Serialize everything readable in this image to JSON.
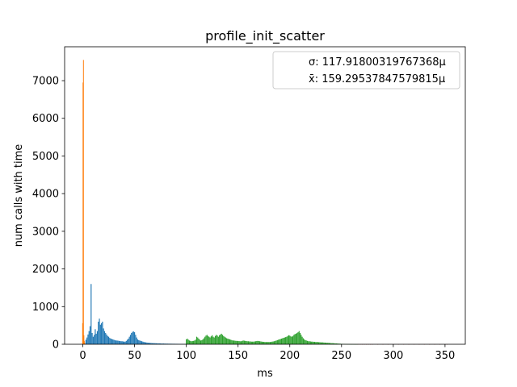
{
  "chart_data": {
    "type": "bar",
    "title": "profile_init_scatter",
    "xlabel": "ms",
    "ylabel": "num calls with time",
    "xlim": [
      -17.6,
      369.6
    ],
    "ylim": [
      0,
      7900
    ],
    "x_ticks": [
      0,
      50,
      100,
      150,
      200,
      250,
      300,
      350
    ],
    "y_ticks": [
      0,
      1000,
      2000,
      3000,
      4000,
      5000,
      6000,
      7000
    ],
    "legend": {
      "placement": "top-right",
      "entries": [
        "σ: 117.91800319767368μ",
        "x̄: 159.29537847579815μ"
      ]
    },
    "series": [
      {
        "color": "#ff7f0e",
        "bar_width": 0.6,
        "x": [
          -0.2,
          0.2,
          0.6,
          1.0,
          1.4,
          1.8
        ],
        "values": [
          560,
          6950,
          7550,
          240,
          90,
          40
        ]
      },
      {
        "color": "#1f77b4",
        "bar_width": 0.9,
        "x": [
          3,
          4,
          5,
          6,
          7,
          8,
          9,
          10,
          11,
          12,
          13,
          14,
          15,
          16,
          17,
          18,
          19,
          20,
          21,
          22,
          23,
          24,
          25,
          26,
          27,
          28,
          29,
          30,
          31,
          32,
          33,
          34,
          35,
          36,
          37,
          38,
          39,
          40,
          41,
          42,
          43,
          44,
          45,
          46,
          47,
          48,
          49,
          50,
          51,
          52,
          53,
          54,
          55,
          56,
          57,
          58,
          59,
          60,
          61,
          62,
          63,
          64,
          65,
          66,
          67,
          68,
          69,
          70,
          71,
          72,
          73,
          74,
          75,
          76,
          77,
          78,
          79,
          80,
          81,
          82,
          83,
          84,
          85,
          86,
          87,
          88,
          89,
          90,
          91,
          92,
          93,
          94,
          95,
          96,
          97,
          98,
          99
        ],
        "values": [
          120,
          180,
          260,
          350,
          480,
          1600,
          300,
          200,
          250,
          400,
          280,
          350,
          600,
          680,
          520,
          560,
          600,
          420,
          350,
          300,
          260,
          220,
          200,
          170,
          150,
          140,
          130,
          120,
          110,
          100,
          100,
          95,
          90,
          85,
          80,
          80,
          75,
          70,
          70,
          90,
          120,
          150,
          200,
          250,
          300,
          330,
          340,
          320,
          250,
          180,
          130,
          110,
          100,
          90,
          80,
          70,
          60,
          55,
          50,
          45,
          40,
          40,
          35,
          35,
          30,
          30,
          30,
          28,
          26,
          25,
          25,
          24,
          22,
          20,
          20,
          20,
          18,
          18,
          16,
          16,
          15,
          15,
          14,
          14,
          13,
          13,
          12,
          12,
          12,
          11,
          11,
          10,
          10,
          10,
          10,
          10,
          10
        ]
      },
      {
        "color": "#2ca02c",
        "bar_width": 0.9,
        "x": [
          100,
          101,
          102,
          103,
          104,
          105,
          106,
          107,
          108,
          109,
          110,
          111,
          112,
          113,
          114,
          115,
          116,
          117,
          118,
          119,
          120,
          121,
          122,
          123,
          124,
          125,
          126,
          127,
          128,
          129,
          130,
          131,
          132,
          133,
          134,
          135,
          136,
          137,
          138,
          139,
          140,
          141,
          142,
          143,
          144,
          145,
          146,
          147,
          148,
          149,
          150,
          151,
          152,
          153,
          154,
          155,
          156,
          157,
          158,
          159,
          160,
          161,
          162,
          163,
          164,
          165,
          166,
          167,
          168,
          169,
          170,
          171,
          172,
          173,
          174,
          175,
          176,
          177,
          178,
          179,
          180,
          181,
          182,
          183,
          184,
          185,
          186,
          187,
          188,
          189,
          190,
          191,
          192,
          193,
          194,
          195,
          196,
          197,
          198,
          199,
          200,
          201,
          202,
          203,
          204,
          205,
          206,
          207,
          208,
          209,
          210,
          211,
          212,
          213,
          214,
          215,
          216,
          217,
          218,
          219,
          220,
          221,
          222,
          223,
          224,
          225,
          226,
          227,
          228,
          229,
          230,
          231,
          232,
          233,
          234,
          235,
          236,
          237,
          238,
          239,
          240,
          241,
          242,
          243,
          244,
          245,
          246,
          247,
          248,
          249,
          250,
          251,
          252,
          253,
          254,
          255,
          256,
          257,
          258,
          259,
          260,
          261,
          262,
          263,
          264,
          265
        ],
        "values": [
          130,
          150,
          120,
          100,
          90,
          80,
          85,
          90,
          100,
          120,
          200,
          180,
          150,
          120,
          100,
          110,
          130,
          160,
          200,
          230,
          250,
          220,
          200,
          180,
          210,
          240,
          200,
          180,
          220,
          250,
          230,
          200,
          240,
          260,
          280,
          250,
          220,
          200,
          180,
          160,
          150,
          140,
          130,
          120,
          110,
          100,
          100,
          95,
          90,
          90,
          85,
          85,
          80,
          80,
          90,
          100,
          95,
          90,
          85,
          80,
          80,
          75,
          75,
          70,
          70,
          70,
          75,
          80,
          85,
          90,
          85,
          80,
          75,
          70,
          65,
          65,
          60,
          60,
          60,
          60,
          60,
          60,
          65,
          70,
          75,
          80,
          90,
          100,
          110,
          120,
          130,
          140,
          150,
          160,
          170,
          180,
          190,
          200,
          220,
          240,
          230,
          210,
          200,
          220,
          250,
          270,
          280,
          300,
          320,
          350,
          300,
          250,
          200,
          160,
          130,
          110,
          100,
          90,
          80,
          80,
          75,
          70,
          70,
          65,
          65,
          60,
          60,
          60,
          55,
          55,
          50,
          50,
          50,
          45,
          45,
          40,
          40,
          40,
          35,
          35,
          30,
          30,
          28,
          26,
          24,
          22,
          20,
          18,
          16,
          14,
          12,
          10,
          9,
          8,
          7,
          6,
          5,
          5,
          4,
          4,
          3,
          3,
          2,
          2,
          2,
          1
        ]
      },
      {
        "color": "#d62728",
        "bar_width": 0.9,
        "x": [
          266,
          268,
          270,
          272,
          274,
          276,
          278,
          280,
          285,
          290,
          295,
          300,
          305,
          310,
          315,
          320,
          325,
          330,
          335,
          340,
          345,
          350,
          352
        ],
        "values": [
          3,
          2,
          2,
          2,
          1,
          2,
          1,
          1,
          1,
          1,
          1,
          1,
          1,
          1,
          1,
          1,
          1,
          1,
          1,
          1,
          1,
          1,
          1
        ]
      }
    ]
  }
}
